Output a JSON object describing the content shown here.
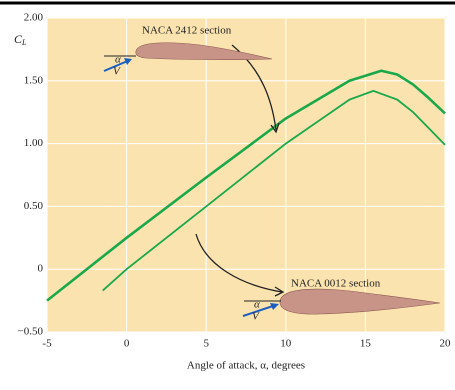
{
  "chart_data": {
    "type": "line",
    "xlabel": "Angle of attack, α, degrees",
    "ylabel": "C",
    "ylabel_sub": "L",
    "xlim": [
      -5,
      20
    ],
    "xticks": [
      -5,
      0,
      5,
      10,
      15,
      20
    ],
    "ylim": [
      -0.5,
      2.0
    ],
    "yticks": [
      {
        "value": -0.5,
        "label": "−0.50"
      },
      0,
      {
        "value": 0.5,
        "label": "0.50"
      },
      {
        "value": 1.0,
        "label": "1.00"
      },
      {
        "value": 1.5,
        "label": "1.50"
      },
      {
        "value": 2.0,
        "label": "2.00"
      }
    ],
    "grid": true,
    "background": "#fbe3b0",
    "series": [
      {
        "name": "NACA 2412 section",
        "color": "#1aa84a",
        "width": 2.6,
        "x": [
          -5,
          0,
          5,
          10,
          14,
          16,
          17,
          18,
          19,
          20
        ],
        "values": [
          -0.25,
          0.25,
          0.73,
          1.2,
          1.5,
          1.58,
          1.55,
          1.47,
          1.36,
          1.24
        ]
      },
      {
        "name": "NACA 0012 section",
        "color": "#1aa84a",
        "width": 1.8,
        "x": [
          -1.5,
          0,
          5,
          10,
          14,
          15.5,
          17,
          18,
          19,
          20
        ],
        "values": [
          -0.17,
          0,
          0.5,
          1.0,
          1.35,
          1.42,
          1.35,
          1.25,
          1.12,
          0.99
        ]
      }
    ],
    "icon_alpha": "α",
    "icon_v": "V"
  }
}
